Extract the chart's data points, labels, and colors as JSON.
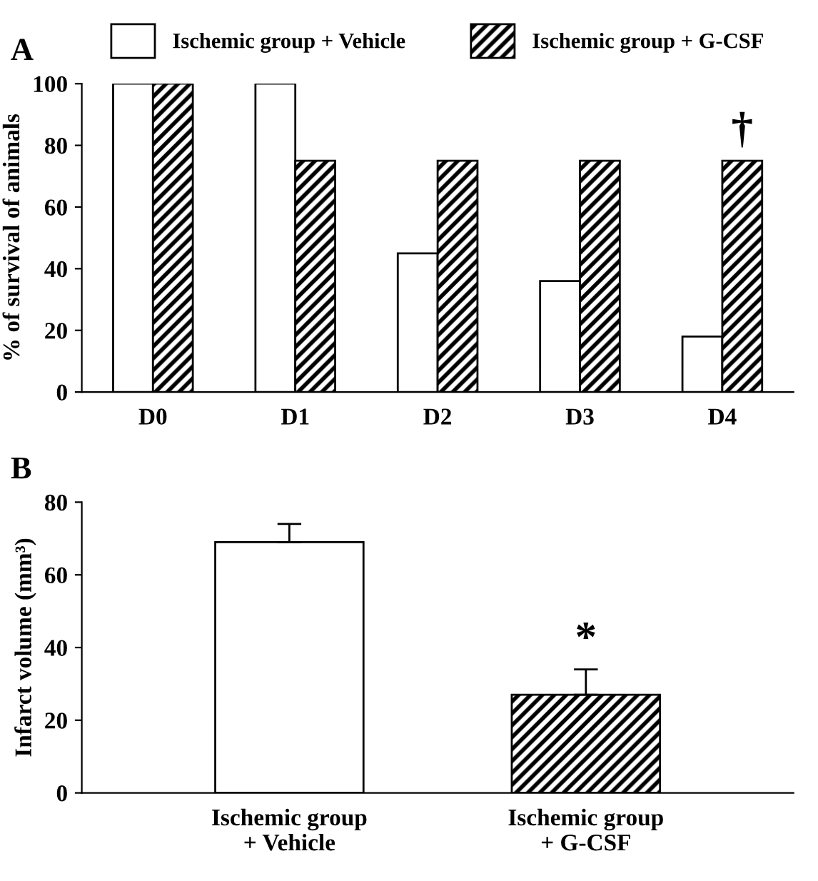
{
  "chart_data": [
    {
      "type": "bar",
      "title": "A",
      "ylabel": "% of survival of animals",
      "categories": [
        "D0",
        "D1",
        "D2",
        "D3",
        "D4"
      ],
      "series": [
        {
          "name": "Ischemic group + Vehicle",
          "color": "#ffffff",
          "values": [
            100,
            100,
            45,
            36,
            18
          ]
        },
        {
          "name": "Ischemic group + G-CSF",
          "color": "#000000",
          "values": [
            100,
            75,
            75,
            75,
            75
          ]
        }
      ],
      "ylim": [
        0,
        100
      ],
      "yticks": [
        0,
        20,
        40,
        60,
        80,
        100
      ],
      "legend": "top",
      "grid": false,
      "annotations": [
        "†"
      ]
    },
    {
      "type": "bar",
      "title": "B",
      "ylabel": "Infarct volume (mm³)",
      "categories": [
        "Ischemic group\n+ Vehicle",
        "Ischemic group\n+ G-CSF"
      ],
      "values": [
        69,
        27
      ],
      "colors": [
        "#ffffff",
        "#000000"
      ],
      "errors": [
        [
          69,
          74
        ],
        [
          27,
          34
        ]
      ],
      "ylim": [
        0,
        80
      ],
      "yticks": [
        0,
        20,
        40,
        60,
        80
      ],
      "grid": false,
      "annotations": [
        "*"
      ]
    }
  ]
}
